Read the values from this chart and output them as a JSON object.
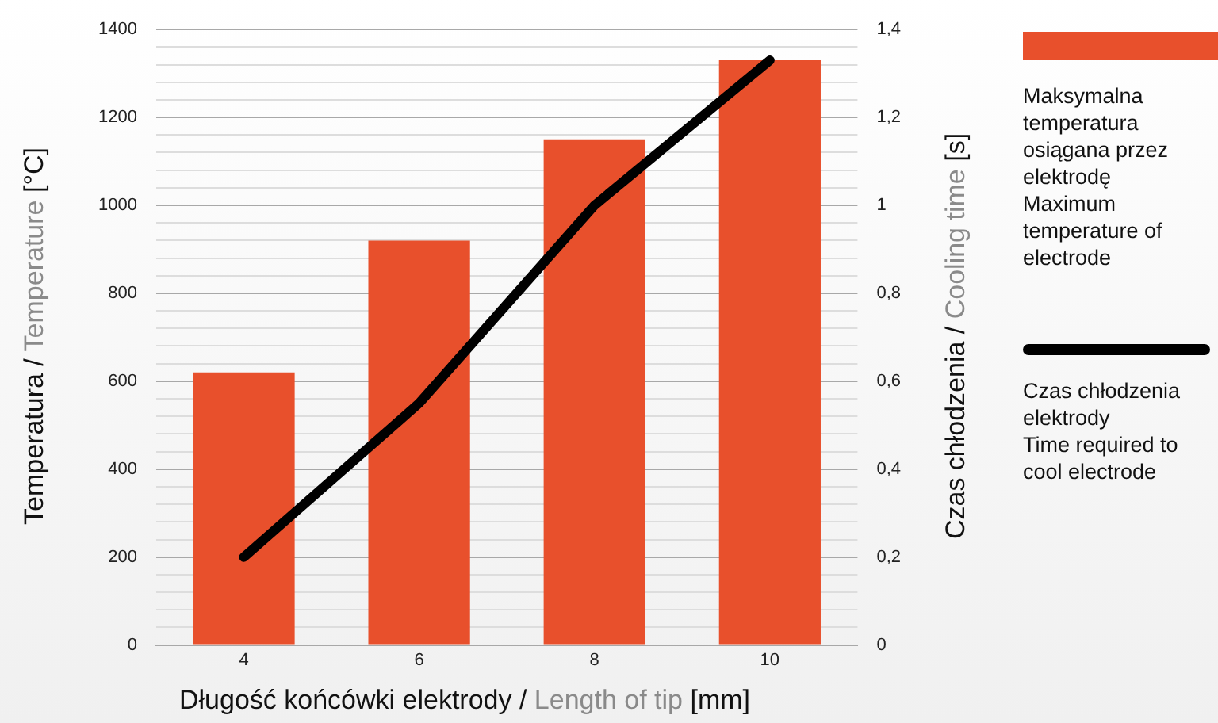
{
  "chart_data": {
    "type": "bar",
    "categories": [
      "4",
      "6",
      "8",
      "10"
    ],
    "xlabel": "Długość końcówki elektrody / Length of tip [mm]",
    "ylabel": "Temperatura / Temperature [°C]",
    "y2label": "Czas chłodzenia / Cooling time [s]",
    "series": [
      {
        "name": "Maksymalna temperatura osiągana przez elektrodę\nMaximum temperature of electrode",
        "color": "#e8502c",
        "values": [
          620,
          920,
          1150,
          1330
        ]
      },
      {
        "name": "Czas chłodzenia elektrody\nTime required to cool electrode",
        "type": "line",
        "axis": "y2",
        "color": "#000000",
        "values": [
          0.2,
          0.55,
          1.0,
          1.33
        ]
      }
    ],
    "ylim": [
      0,
      1400
    ],
    "yticks": [
      0,
      {
        "value": 40,
        "label": null
      },
      {
        "value": 80,
        "label": null
      },
      {
        "value": 120,
        "label": null
      },
      {
        "value": 160,
        "label": null
      },
      200,
      {
        "value": 240,
        "label": null
      },
      {
        "value": 280,
        "label": null
      },
      {
        "value": 320,
        "label": null
      },
      {
        "value": 360,
        "label": null
      },
      400,
      {
        "value": 440,
        "label": null
      },
      {
        "value": 480,
        "label": null
      },
      {
        "value": 520,
        "label": null
      },
      {
        "value": 560,
        "label": null
      },
      600,
      {
        "value": 640,
        "label": null
      },
      {
        "value": 680,
        "label": null
      },
      {
        "value": 720,
        "label": null
      },
      {
        "value": 760,
        "label": null
      },
      800,
      {
        "value": 840,
        "label": null
      },
      {
        "value": 880,
        "label": null
      },
      {
        "value": 920,
        "label": null
      },
      {
        "value": 960,
        "label": null
      },
      1000,
      {
        "value": 1040,
        "label": null
      },
      {
        "value": 1080,
        "label": null
      },
      {
        "value": 1120,
        "label": null
      },
      {
        "value": 1160,
        "label": null
      },
      1200,
      {
        "value": 1240,
        "label": null
      },
      {
        "value": 1280,
        "label": null
      },
      {
        "value": 1320,
        "label": null
      },
      {
        "value": 1360,
        "label": null
      },
      1400
    ],
    "y2lim": [
      0,
      1.4
    ],
    "y2ticks": [
      0,
      {
        "value": 0.2,
        "label": "0,2"
      },
      {
        "value": 0.4,
        "label": "0,4"
      },
      {
        "value": 0.6,
        "label": "0,6"
      },
      {
        "value": 0.8,
        "label": "0,8"
      },
      1,
      {
        "value": 1.2,
        "label": "1,2"
      },
      {
        "value": 1.4,
        "label": "1,4"
      }
    ],
    "grid": "y",
    "legend": "right"
  }
}
